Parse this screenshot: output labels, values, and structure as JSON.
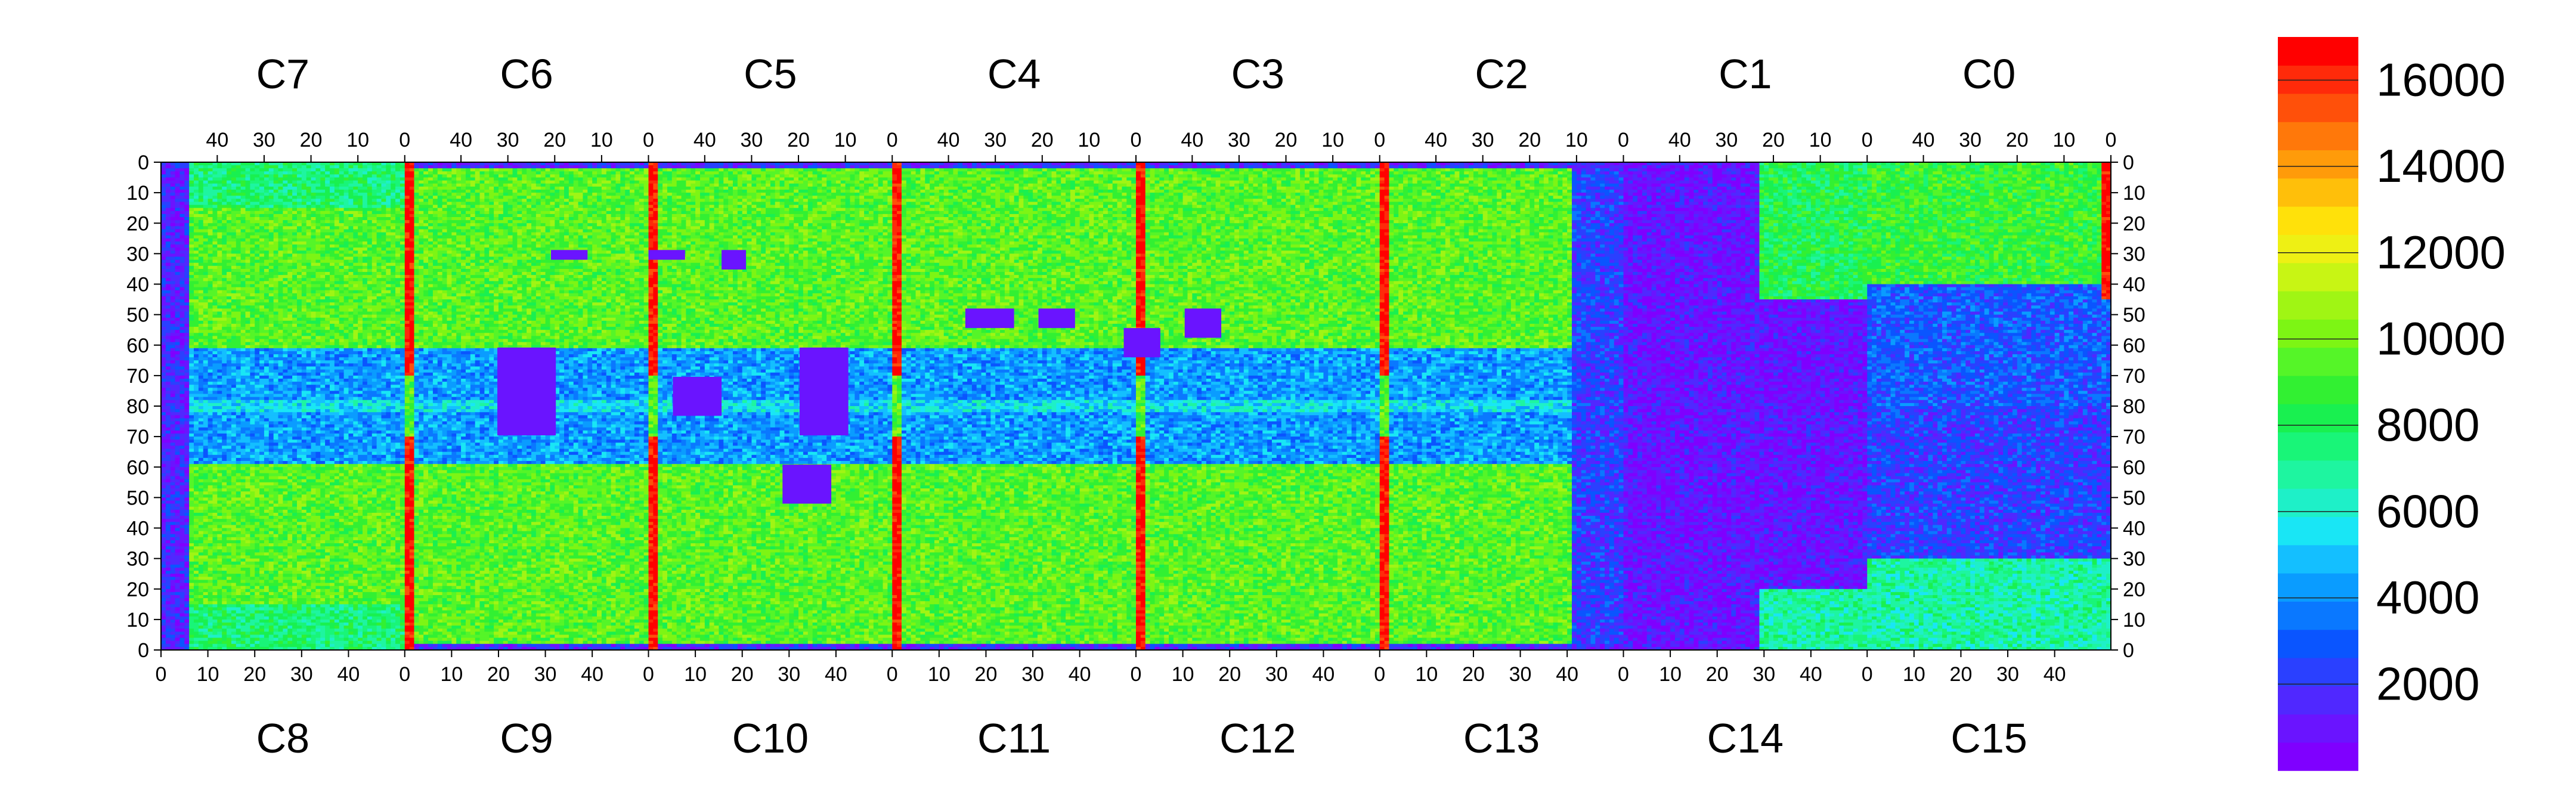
{
  "chart_data": {
    "type": "heatmap",
    "title": "",
    "top_chip_labels": [
      "C7",
      "C6",
      "C5",
      "C4",
      "C3",
      "C2",
      "C1",
      "C0"
    ],
    "bottom_chip_labels": [
      "C8",
      "C9",
      "C10",
      "C11",
      "C12",
      "C13",
      "C14",
      "C15"
    ],
    "top_x_ticks": [
      [
        "40",
        "30",
        "20",
        "10",
        "0"
      ],
      [
        "40",
        "30",
        "20",
        "10",
        "0"
      ],
      [
        "40",
        "30",
        "20",
        "10",
        "0"
      ],
      [
        "40",
        "30",
        "20",
        "10",
        "0"
      ],
      [
        "40",
        "30",
        "20",
        "10",
        "0"
      ],
      [
        "40",
        "30",
        "20",
        "10",
        "0"
      ],
      [
        "40",
        "30",
        "20",
        "10",
        "0"
      ],
      [
        "40",
        "30",
        "20",
        "10",
        "0"
      ]
    ],
    "bottom_x_ticks": [
      [
        "0",
        "10",
        "20",
        "30",
        "40"
      ],
      [
        "0",
        "10",
        "20",
        "30",
        "40"
      ],
      [
        "0",
        "10",
        "20",
        "30",
        "40"
      ],
      [
        "0",
        "10",
        "20",
        "30",
        "40"
      ],
      [
        "0",
        "10",
        "20",
        "30",
        "40"
      ],
      [
        "0",
        "10",
        "20",
        "30",
        "40"
      ],
      [
        "0",
        "10",
        "20",
        "30",
        "40"
      ],
      [
        "0",
        "10",
        "20",
        "30",
        "40"
      ]
    ],
    "y_ticks_top_half": [
      "0",
      "10",
      "20",
      "30",
      "40",
      "50",
      "60",
      "70",
      "80"
    ],
    "y_ticks_bottom_half": [
      "70",
      "60",
      "50",
      "40",
      "30",
      "20",
      "10",
      "0"
    ],
    "columns_per_chip": 52,
    "rows_per_half": 80,
    "colorbar": {
      "min": 0,
      "max": 17000,
      "tick_labels": [
        "2000",
        "4000",
        "6000",
        "8000",
        "10000",
        "12000",
        "14000",
        "16000"
      ],
      "tick_values": [
        2000,
        4000,
        6000,
        8000,
        10000,
        12000,
        14000,
        16000
      ]
    },
    "palette": [
      "#7f00ff",
      "#6a14ff",
      "#5028ff",
      "#2a40ff",
      "#0a55ff",
      "#0a78ff",
      "#0a9cff",
      "#14bfff",
      "#19e6f5",
      "#1ef0c8",
      "#1ef5a0",
      "#19f578",
      "#19f050",
      "#32f032",
      "#55f528",
      "#7df514",
      "#a0f514",
      "#c8f514",
      "#eef014",
      "#ffe10a",
      "#ffbf0a",
      "#ff9b0a",
      "#ff780a",
      "#ff500a",
      "#ff2a0a",
      "#ff0000"
    ],
    "approx_description": "Hitmap of 16 pixel chips (C0–C15), mean around 8000–10000 in active regions, low (~500) in C13/C14 area, high (~16000) along chip edge columns"
  }
}
